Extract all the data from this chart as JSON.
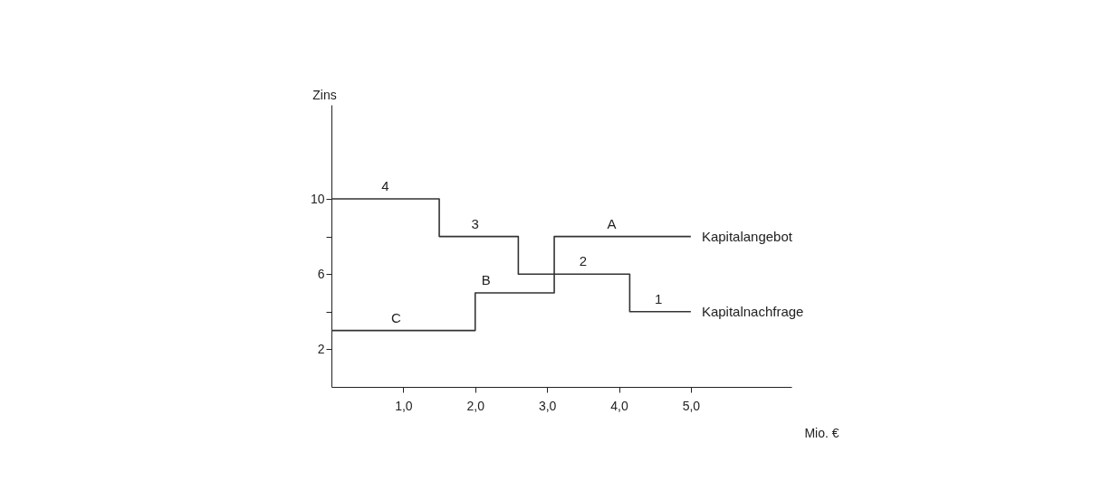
{
  "chart_data": {
    "type": "step",
    "xlabel": "Mio. €",
    "ylabel": "Zins",
    "xlim": [
      0,
      6.4
    ],
    "ylim": [
      0,
      15
    ],
    "xticks": [
      {
        "value": 1,
        "label": "1,0"
      },
      {
        "value": 2,
        "label": "2,0"
      },
      {
        "value": 3,
        "label": "3,0"
      },
      {
        "value": 4,
        "label": "4,0"
      },
      {
        "value": 5,
        "label": "5,0"
      }
    ],
    "yticks": [
      2,
      {
        "value": 4,
        "label": null
      },
      6,
      {
        "value": 8,
        "label": null
      },
      10
    ],
    "grid": false,
    "legend": false,
    "marker": "none",
    "line_style": "solid",
    "series": [
      {
        "name": "Kapitalangebot",
        "color": "#333333",
        "x": [
          0,
          2.0,
          3.1,
          5.0
        ],
        "values": [
          3,
          5,
          8,
          8
        ]
      },
      {
        "name": "Kapitalnachfrage",
        "color": "#333333",
        "x": [
          0,
          1.5,
          2.6,
          4.15,
          5.0
        ],
        "values": [
          10,
          8,
          6,
          4,
          4
        ]
      }
    ],
    "annotations": [
      {
        "text": "4",
        "x": 0.75,
        "y": 10
      },
      {
        "text": "3",
        "x": 2.0,
        "y": 8
      },
      {
        "text": "2",
        "x": 3.5,
        "y": 6
      },
      {
        "text": "1",
        "x": 4.55,
        "y": 4
      },
      {
        "text": "A",
        "x": 3.9,
        "y": 8
      },
      {
        "text": "B",
        "x": 2.15,
        "y": 5
      },
      {
        "text": "C",
        "x": 0.9,
        "y": 3
      }
    ]
  }
}
